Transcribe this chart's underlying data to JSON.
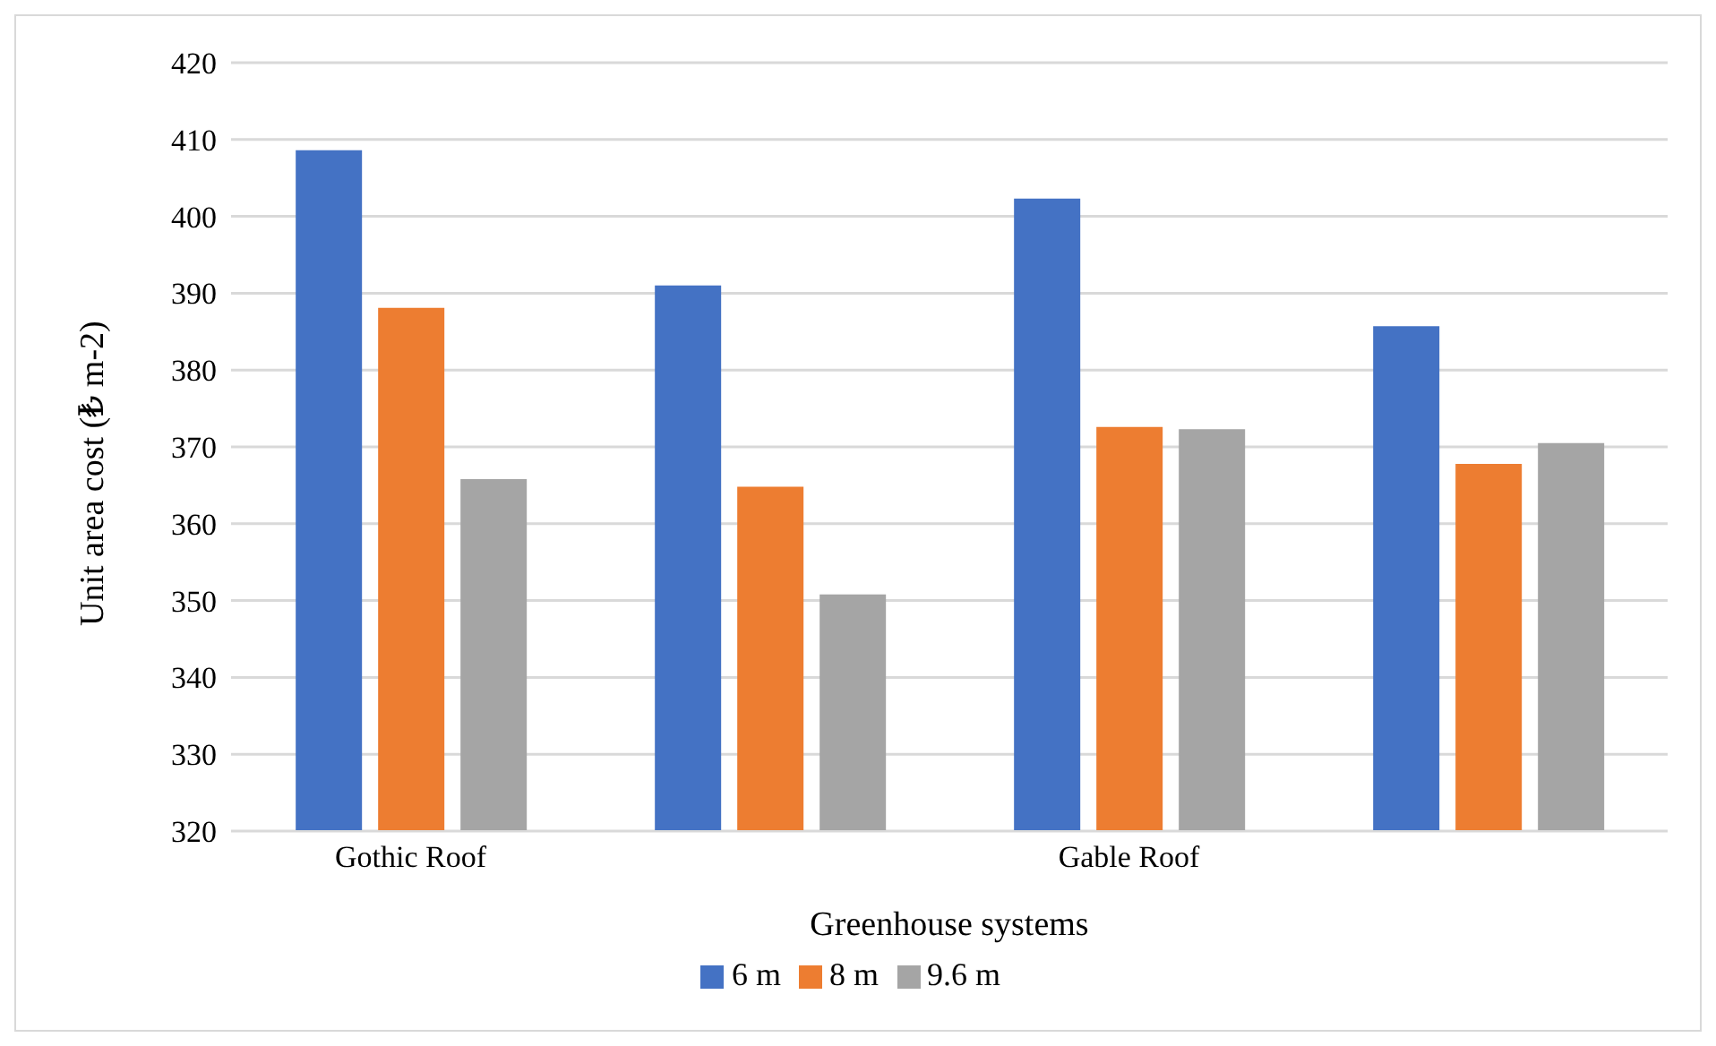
{
  "chart_data": {
    "type": "bar",
    "xlabel": "Greenhouse systems",
    "ylabel": "Unit area cost (₺ m-2)",
    "categories": [
      "Gothic Roof",
      null,
      "Gable Roof",
      null
    ],
    "series": [
      {
        "name": "6 m",
        "color": "#4472c4",
        "values": [
          408.6,
          391.0,
          402.3,
          385.7
        ]
      },
      {
        "name": "8 m",
        "color": "#ed7d31",
        "values": [
          388.1,
          364.8,
          372.6,
          367.8
        ]
      },
      {
        "name": "9.6 m",
        "color": "#a5a5a5",
        "values": [
          365.8,
          350.8,
          372.3,
          370.5
        ]
      }
    ],
    "ylim": [
      320,
      420
    ],
    "yticks": [
      320,
      330,
      340,
      350,
      360,
      370,
      380,
      390,
      400,
      410,
      420
    ],
    "grid": "y",
    "legend": "bottom"
  }
}
